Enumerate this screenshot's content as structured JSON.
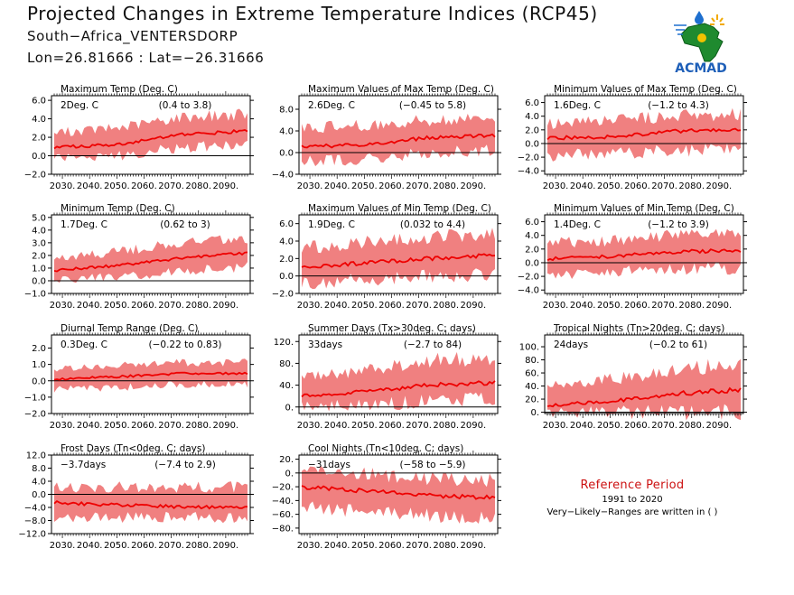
{
  "header": {
    "title": "Projected Changes in Extreme Temperature Indices (RCP45)",
    "subtitle": "South−Africa_VENTERSDORP",
    "coords": "Lon=26.81666 : Lat=−26.31666"
  },
  "logo": {
    "text": "ACMAD",
    "icon": "africa-map-logo-icon"
  },
  "reference": {
    "title": "Reference Period",
    "period": "1991 to 2020",
    "note": "Very−Likely−Ranges are written in ( )"
  },
  "colors": {
    "band": "#f08080",
    "line": "#ee0000",
    "ref_title": "#cc1111"
  },
  "chart_data": [
    {
      "type": "area",
      "title": "Maximum Temp (Deg. C)",
      "mean_label": "2Deg. C",
      "range_label": "(0.4 to 3.8)",
      "ylim": [
        -2,
        6.5
      ],
      "yticks": [
        -2,
        0,
        2,
        4,
        6
      ],
      "ytick_labels": [
        "−2.0",
        "0.0",
        "2.0",
        "4.0",
        "6.0"
      ],
      "xticks": [
        2030,
        2040,
        2050,
        2060,
        2070,
        2080,
        2090
      ],
      "xtick_labels": [
        "2030.",
        "2040.",
        "2050.",
        "2060.",
        "2070.",
        "2080.",
        "2090."
      ],
      "series": [
        {
          "values": [
            0.9,
            1.2,
            2.3,
            2.7
          ]
        },
        {
          "values": [
            -0.2,
            0.0,
            0.9,
            1.2
          ]
        },
        {
          "values": [
            2.5,
            3.0,
            4.2,
            4.5
          ]
        }
      ]
    },
    {
      "type": "area",
      "title": "Maximum Values of Max Temp (Deg. C)",
      "mean_label": "2.6Deg. C",
      "range_label": "(−0.45 to 5.8)",
      "ylim": [
        -4,
        10.5
      ],
      "yticks": [
        -4,
        0,
        4,
        8
      ],
      "ytick_labels": [
        "−4.0",
        "0.0",
        "4.0",
        "8.0"
      ],
      "xticks": [
        2030,
        2040,
        2050,
        2060,
        2070,
        2080,
        2090
      ],
      "xtick_labels": [
        "2030.",
        "2040.",
        "2050.",
        "2060.",
        "2070.",
        "2080.",
        "2090."
      ],
      "series": [
        {
          "values": [
            1.0,
            1.5,
            2.8,
            3.2
          ]
        },
        {
          "values": [
            -1.8,
            -1.2,
            0.0,
            0.5
          ]
        },
        {
          "values": [
            4.5,
            5.0,
            6.0,
            6.5
          ]
        }
      ]
    },
    {
      "type": "area",
      "title": "Minimum Values of Max Temp (Deg. C)",
      "mean_label": "1.6Deg. C",
      "range_label": "(−1.2 to 4.3)",
      "ylim": [
        -4.5,
        7
      ],
      "yticks": [
        -4,
        -2,
        0,
        2,
        4,
        6
      ],
      "ytick_labels": [
        "−4.0",
        "−2.0",
        "0.0",
        "2.0",
        "4.0",
        "6.0"
      ],
      "xticks": [
        2030,
        2040,
        2050,
        2060,
        2070,
        2080,
        2090
      ],
      "xtick_labels": [
        "2030.",
        "2040.",
        "2050.",
        "2060.",
        "2070.",
        "2080.",
        "2090."
      ],
      "series": [
        {
          "values": [
            0.8,
            1.0,
            1.8,
            2.1
          ]
        },
        {
          "values": [
            -1.8,
            -1.5,
            -1.0,
            -0.8
          ]
        },
        {
          "values": [
            3.0,
            3.3,
            4.0,
            4.4
          ]
        }
      ]
    },
    {
      "type": "area",
      "title": "Minimum Temp (Deg. C)",
      "mean_label": "1.7Deg. C",
      "range_label": "(0.62 to 3)",
      "ylim": [
        -1,
        5.2
      ],
      "yticks": [
        -1,
        0,
        1,
        2,
        3,
        4,
        5
      ],
      "ytick_labels": [
        "−1.0",
        "0.0",
        "1.0",
        "2.0",
        "3.0",
        "4.0",
        "5.0"
      ],
      "xticks": [
        2030,
        2040,
        2050,
        2060,
        2070,
        2080,
        2090
      ],
      "xtick_labels": [
        "2030.",
        "2040.",
        "2050.",
        "2060.",
        "2070.",
        "2080.",
        "2090."
      ],
      "series": [
        {
          "values": [
            0.8,
            1.2,
            1.8,
            2.2
          ]
        },
        {
          "values": [
            0.0,
            0.3,
            0.8,
            1.1
          ]
        },
        {
          "values": [
            1.8,
            2.3,
            3.0,
            3.4
          ]
        }
      ]
    },
    {
      "type": "area",
      "title": "Maximum Values of Min Temp (Deg. C)",
      "mean_label": "1.9Deg. C",
      "range_label": "(0.032 to 4.4)",
      "ylim": [
        -2,
        7
      ],
      "yticks": [
        -2,
        0,
        2,
        4,
        6
      ],
      "ytick_labels": [
        "−2.0",
        "0.0",
        "2.0",
        "4.0",
        "6.0"
      ],
      "xticks": [
        2030,
        2040,
        2050,
        2060,
        2070,
        2080,
        2090
      ],
      "xtick_labels": [
        "2030.",
        "2040.",
        "2050.",
        "2060.",
        "2070.",
        "2080.",
        "2090."
      ],
      "series": [
        {
          "values": [
            1.0,
            1.5,
            2.0,
            2.4
          ]
        },
        {
          "values": [
            -0.8,
            -0.5,
            0.0,
            0.3
          ]
        },
        {
          "values": [
            3.2,
            3.8,
            4.4,
            4.8
          ]
        }
      ]
    },
    {
      "type": "area",
      "title": "Minimum Values of Min Temp (Deg. C)",
      "mean_label": "1.4Deg. C",
      "range_label": "(−1.2 to 3.9)",
      "ylim": [
        -4.5,
        7
      ],
      "yticks": [
        -4,
        -2,
        0,
        2,
        4,
        6
      ],
      "ytick_labels": [
        "−4.0",
        "−2.0",
        "0.0",
        "2.0",
        "4.0",
        "6.0"
      ],
      "xticks": [
        2030,
        2040,
        2050,
        2060,
        2070,
        2080,
        2090
      ],
      "xtick_labels": [
        "2030.",
        "2040.",
        "2050.",
        "2060.",
        "2070.",
        "2080.",
        "2090."
      ],
      "series": [
        {
          "values": [
            0.5,
            0.9,
            1.6,
            1.8
          ]
        },
        {
          "values": [
            -1.8,
            -1.4,
            -0.9,
            -0.8
          ]
        },
        {
          "values": [
            2.8,
            3.3,
            4.0,
            4.3
          ]
        }
      ]
    },
    {
      "type": "area",
      "title": "Diurnal Temp Range (Deg. C)",
      "mean_label": "0.3Deg. C",
      "range_label": "(−0.22 to 0.83)",
      "ylim": [
        -2,
        2.8
      ],
      "yticks": [
        -2,
        -1,
        0,
        1,
        2
      ],
      "ytick_labels": [
        "−2.0",
        "−1.0",
        "0.0",
        "1.0",
        "2.0"
      ],
      "xticks": [
        2030,
        2040,
        2050,
        2060,
        2070,
        2080,
        2090
      ],
      "xtick_labels": [
        "2030.",
        "2040.",
        "2050.",
        "2060.",
        "2070.",
        "2080.",
        "2090."
      ],
      "series": [
        {
          "values": [
            0.1,
            0.25,
            0.45,
            0.45
          ]
        },
        {
          "values": [
            -0.5,
            -0.4,
            -0.2,
            -0.2
          ]
        },
        {
          "values": [
            0.7,
            0.9,
            1.1,
            1.1
          ]
        }
      ]
    },
    {
      "type": "area",
      "title": "Summer Days (Tx>30deg. C; days)",
      "mean_label": "33days",
      "range_label": "(−2.7 to 84)",
      "ylim": [
        -12,
        132
      ],
      "yticks": [
        0,
        40,
        80,
        120
      ],
      "ytick_labels": [
        "0.",
        "40.",
        "80.",
        "120."
      ],
      "xticks": [
        2030,
        2040,
        2050,
        2060,
        2070,
        2080,
        2090
      ],
      "xtick_labels": [
        "2030.",
        "2040.",
        "2050.",
        "2060.",
        "2070.",
        "2080.",
        "2090."
      ],
      "series": [
        {
          "values": [
            20,
            28,
            40,
            45
          ]
        },
        {
          "values": [
            0,
            3,
            12,
            16
          ]
        },
        {
          "values": [
            55,
            68,
            85,
            90
          ]
        }
      ]
    },
    {
      "type": "area",
      "title": "Tropical Nights (Tn>20deg. C; days)",
      "mean_label": "24days",
      "range_label": "(−0.2 to 61)",
      "ylim": [
        -2,
        118
      ],
      "yticks": [
        0,
        20,
        40,
        60,
        80,
        100
      ],
      "ytick_labels": [
        "0.",
        "20.",
        "40.",
        "60.",
        "80.",
        "100."
      ],
      "xticks": [
        2030,
        2040,
        2050,
        2060,
        2070,
        2080,
        2090
      ],
      "xtick_labels": [
        "2030.",
        "2040.",
        "2050.",
        "2060.",
        "2070.",
        "2080.",
        "2090."
      ],
      "series": [
        {
          "values": [
            10,
            17,
            28,
            35
          ]
        },
        {
          "values": [
            0,
            0,
            0,
            0
          ]
        },
        {
          "values": [
            40,
            50,
            65,
            75
          ]
        }
      ]
    },
    {
      "type": "area",
      "title": "Frost Days (Tn<0deg. C; days)",
      "mean_label": "−3.7days",
      "range_label": "(−7.4 to 2.9)",
      "ylim": [
        -12,
        12
      ],
      "yticks": [
        -12,
        -8,
        -4,
        0,
        4,
        8,
        12
      ],
      "ytick_labels": [
        "−12.0",
        "−8.0",
        "−4.0",
        "0.0",
        "4.0",
        "8.0",
        "12.0"
      ],
      "xticks": [
        2030,
        2040,
        2050,
        2060,
        2070,
        2080,
        2090
      ],
      "xtick_labels": [
        "2030.",
        "2040.",
        "2050.",
        "2060.",
        "2070.",
        "2080.",
        "2090."
      ],
      "series": [
        {
          "values": [
            -2.5,
            -3.3,
            -3.8,
            -4.2
          ]
        },
        {
          "values": [
            -7.0,
            -7.0,
            -7.0,
            -7.0
          ]
        },
        {
          "values": [
            2.0,
            2.2,
            2.2,
            2.2
          ]
        }
      ]
    },
    {
      "type": "area",
      "title": "Cool Nights (Tn<10deg. C; days)",
      "mean_label": "−31days",
      "range_label": "(−58 to −5.9)",
      "ylim": [
        -88,
        26
      ],
      "yticks": [
        -80,
        -60,
        -40,
        -20,
        0,
        20
      ],
      "ytick_labels": [
        "−80.",
        "−60.",
        "−40.",
        "−20.",
        "0.",
        "20."
      ],
      "xticks": [
        2030,
        2040,
        2050,
        2060,
        2070,
        2080,
        2090
      ],
      "xtick_labels": [
        "2030.",
        "2040.",
        "2050.",
        "2060.",
        "2070.",
        "2080.",
        "2090."
      ],
      "series": [
        {
          "values": [
            -20,
            -26,
            -33,
            -36
          ]
        },
        {
          "values": [
            -50,
            -55,
            -62,
            -66
          ]
        },
        {
          "values": [
            5,
            -2,
            -8,
            -10
          ]
        }
      ]
    }
  ]
}
